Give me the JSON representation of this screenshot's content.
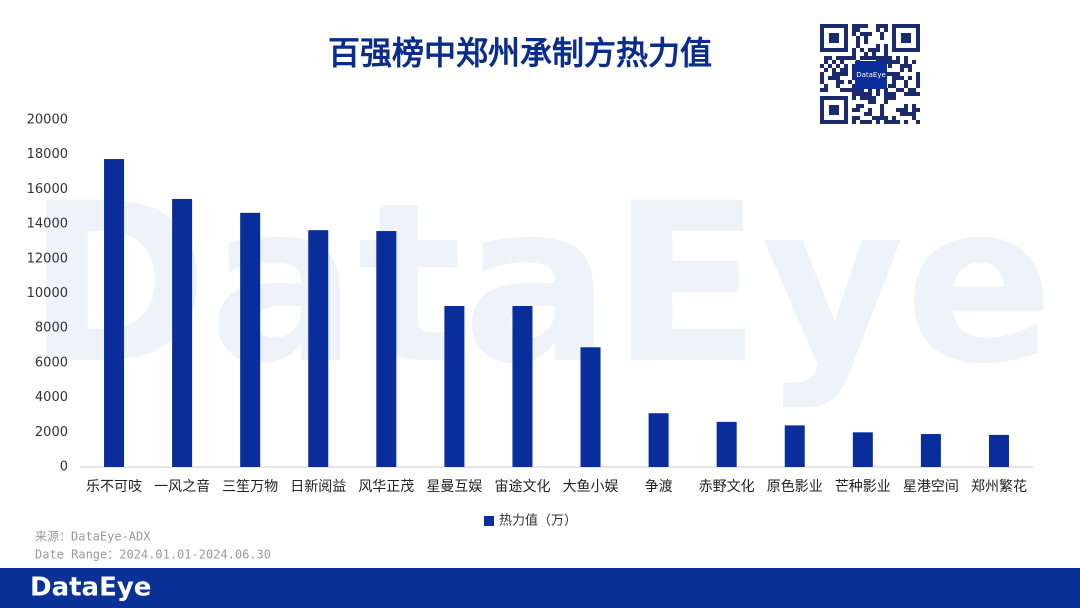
{
  "chart_data": {
    "type": "bar",
    "title": "百强榜中郑州承制方热力值",
    "categories": [
      "乐不可吱",
      "一风之音",
      "三笙万物",
      "日新阅益",
      "风华正茂",
      "星曼互娱",
      "宙途文化",
      "大鱼小娱",
      "争渡",
      "赤野文化",
      "原色影业",
      "芒种影业",
      "星港空间",
      "郑州繁花"
    ],
    "series": [
      {
        "name": "热力值（万）",
        "color": "#0a2d9c",
        "values": [
          17750,
          15450,
          14650,
          13650,
          13600,
          9280,
          9280,
          6900,
          3100,
          2600,
          2400,
          2000,
          1900,
          1850
        ]
      }
    ],
    "ylim": [
      0,
      20000
    ],
    "yticks": [
      0,
      2000,
      4000,
      6000,
      8000,
      10000,
      12000,
      14000,
      16000,
      18000,
      20000
    ],
    "grid": false,
    "legend": "bottom"
  },
  "watermark": "DataEye",
  "qr_label": "DataEye",
  "source": "来源：DataEye-ADX",
  "date_range": "Date Range：2024.01.01-2024.06.30",
  "footer_logo": "DataEye"
}
